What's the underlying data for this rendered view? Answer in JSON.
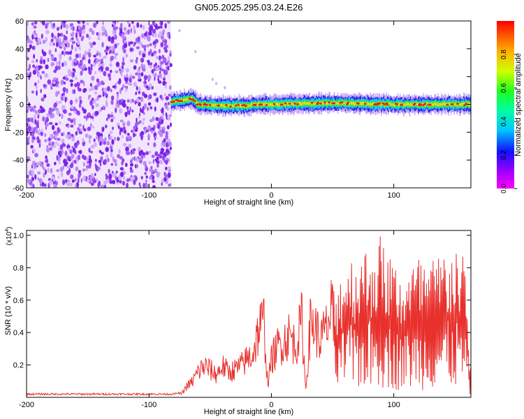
{
  "title": "GN05.2025.295.03.24.E26",
  "colors": {
    "snr_line": "#e8302c",
    "spec_dot": "#8a2be2",
    "axis": "#000000"
  },
  "chart_data": [
    {
      "type": "heatmap",
      "name": "spectrogram",
      "title": "GN05.2025.295.03.24.E26",
      "xlabel": "Height of straight line (km)",
      "ylabel": "Frequency (Hz)",
      "xlim": [
        -200,
        163
      ],
      "ylim": [
        -60,
        60
      ],
      "x_ticks": [
        -200,
        -100,
        0,
        100
      ],
      "y_ticks": [
        -60,
        -40,
        -20,
        0,
        20,
        40,
        60
      ],
      "colorbar": {
        "label": "Normalized spectral amplitude",
        "range": [
          0,
          1
        ],
        "ticks": [
          "0.0",
          "0.2",
          "0.4",
          "0.6",
          "0.8"
        ]
      },
      "noise_region_km": [
        -200,
        -82
      ],
      "signal_band": {
        "x_start_km": -82,
        "freq_track": [
          [
            -82,
            2
          ],
          [
            -65,
            4
          ],
          [
            -60,
            0
          ],
          [
            -40,
            -1
          ],
          [
            -20,
            -1
          ],
          [
            -15,
            0
          ],
          [
            0,
            0
          ],
          [
            50,
            1
          ],
          [
            100,
            0
          ],
          [
            160,
            0
          ]
        ]
      }
    },
    {
      "type": "line",
      "name": "snr",
      "xlabel": "Height of straight line (km)",
      "ylabel": "SNR (10 * v/v)",
      "y_multiplier": "(x10^4)",
      "multiplier_base": "(x10",
      "multiplier_exp": "4",
      "multiplier_close": ")",
      "xlim": [
        -200,
        163
      ],
      "ylim": [
        0,
        1.03
      ],
      "x_ticks": [
        -200,
        -100,
        0,
        100
      ],
      "y_ticks": [
        "0.2",
        "0.4",
        "0.6",
        "0.8",
        "1.0"
      ],
      "series": [
        {
          "name": "SNR",
          "points": [
            [
              -200,
              0.02
            ],
            [
              -180,
              0.02
            ],
            [
              -160,
              0.02
            ],
            [
              -140,
              0.02
            ],
            [
              -120,
              0.02
            ],
            [
              -100,
              0.02
            ],
            [
              -80,
              0.02
            ],
            [
              -73,
              0.03
            ],
            [
              -70,
              0.08
            ],
            [
              -65,
              0.12
            ],
            [
              -60,
              0.2
            ],
            [
              -55,
              0.25
            ],
            [
              -50,
              0.22
            ],
            [
              -45,
              0.18
            ],
            [
              -40,
              0.25
            ],
            [
              -35,
              0.2
            ],
            [
              -30,
              0.22
            ],
            [
              -25,
              0.25
            ],
            [
              -20,
              0.3
            ],
            [
              -15,
              0.35
            ],
            [
              -10,
              0.55
            ],
            [
              -6,
              0.6
            ],
            [
              -3,
              0.1
            ],
            [
              0,
              0.3
            ],
            [
              5,
              0.4
            ],
            [
              10,
              0.45
            ],
            [
              15,
              0.5
            ],
            [
              20,
              0.4
            ],
            [
              25,
              0.62
            ],
            [
              28,
              0.05
            ],
            [
              32,
              0.6
            ],
            [
              36,
              0.55
            ],
            [
              40,
              0.45
            ],
            [
              45,
              0.55
            ],
            [
              50,
              0.7
            ],
            [
              55,
              0.75
            ],
            [
              60,
              0.88
            ],
            [
              70,
              0.9
            ],
            [
              80,
              0.95
            ],
            [
              90,
              1.02
            ],
            [
              100,
              0.85
            ],
            [
              110,
              0.8
            ],
            [
              120,
              0.88
            ],
            [
              130,
              0.85
            ],
            [
              140,
              0.92
            ],
            [
              150,
              0.98
            ],
            [
              158,
              0.85
            ],
            [
              163,
              0.15
            ]
          ]
        }
      ]
    }
  ]
}
